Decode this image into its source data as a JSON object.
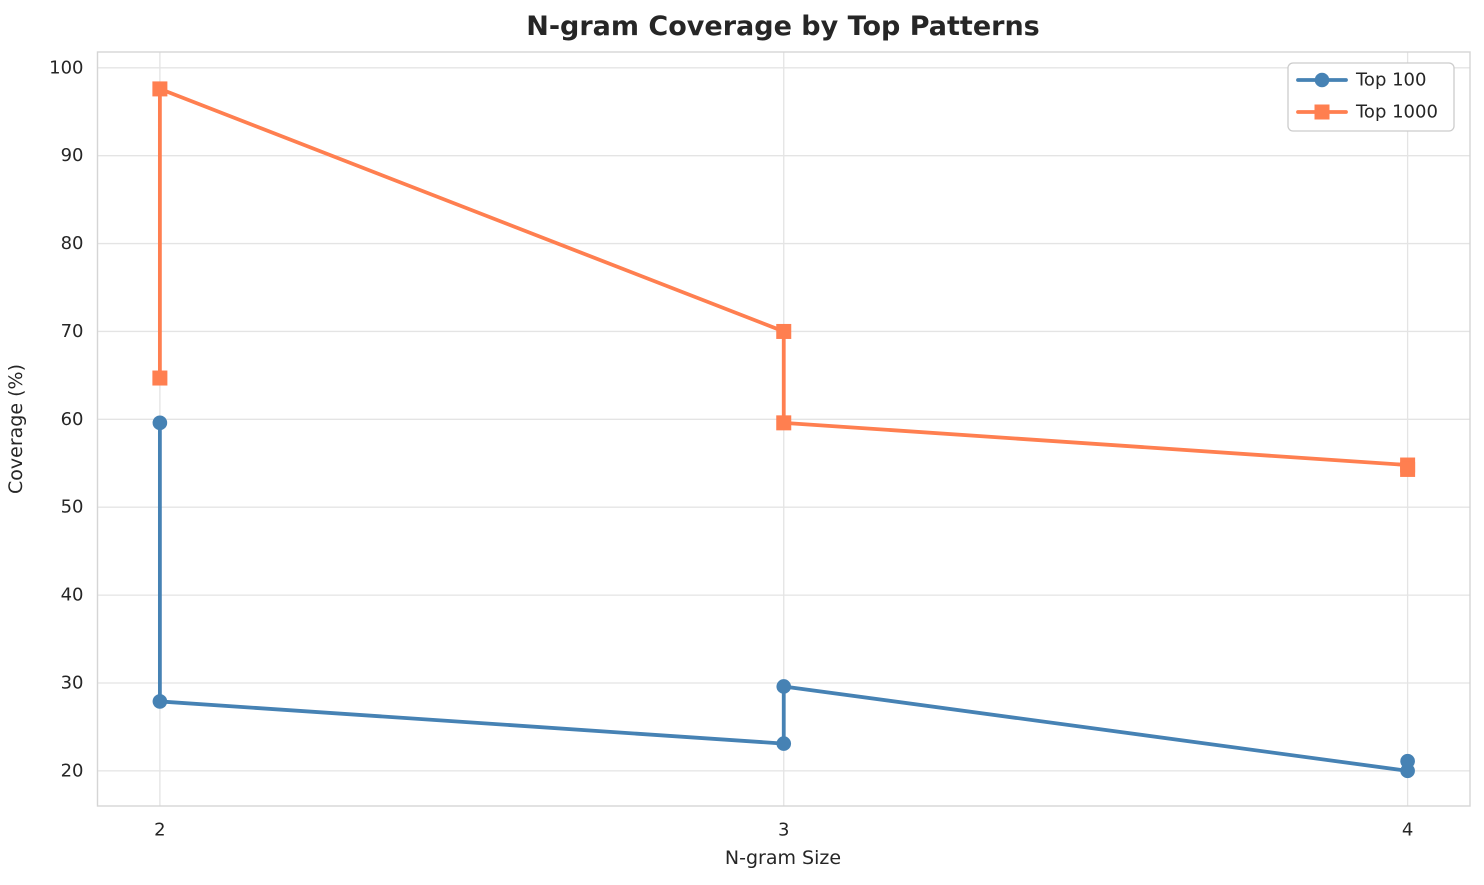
{
  "chart_data": {
    "type": "line",
    "title": "N-gram Coverage by Top Patterns",
    "xlabel": "N-gram Size",
    "ylabel": "Coverage (%)",
    "xlim": [
      1.9,
      4.1
    ],
    "ylim": [
      16.0,
      101.8
    ],
    "x_ticks": [
      2,
      3,
      4
    ],
    "y_ticks": [
      20,
      30,
      40,
      50,
      60,
      70,
      80,
      90,
      100
    ],
    "grid": true,
    "legend_position": "upper right",
    "series": [
      {
        "name": "Top 100",
        "color": "#4682b4",
        "marker": "circle",
        "points": [
          [
            2,
            59.6
          ],
          [
            2,
            27.9
          ],
          [
            3,
            23.1
          ],
          [
            3,
            29.6
          ],
          [
            4,
            20.0
          ],
          [
            4,
            21.1
          ]
        ]
      },
      {
        "name": "Top 1000",
        "color": "#ff7f50",
        "marker": "square",
        "points": [
          [
            2,
            64.7
          ],
          [
            2,
            97.6
          ],
          [
            3,
            70.0
          ],
          [
            3,
            59.6
          ],
          [
            4,
            54.8
          ],
          [
            4,
            54.3
          ]
        ]
      }
    ]
  },
  "colors": {
    "background": "#ffffff",
    "text": "#262626",
    "grid": "#e4e4e4",
    "spine": "#d5d5d5",
    "legend_border": "#cccccc",
    "series_blue": "#4682b4",
    "series_orange": "#ff7f50"
  }
}
